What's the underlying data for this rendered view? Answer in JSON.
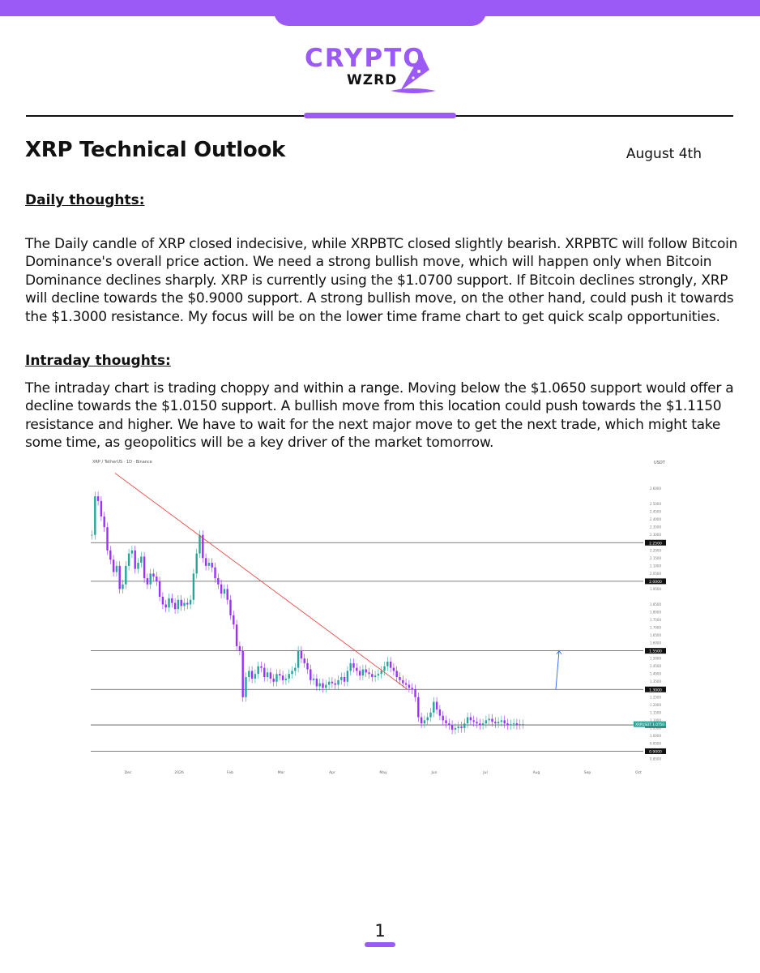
{
  "brand": {
    "name_top": "CRYPTO",
    "name_bottom": "WZRD",
    "accent": "#9b59f5"
  },
  "header": {
    "title": "XRP Technical Outlook",
    "date": "August 4th"
  },
  "daily": {
    "heading": "Daily thoughts:",
    "text": "The Daily candle of XRP closed indecisive, while XRPBTC closed slightly bearish. XRPBTC will follow Bitcoin Dominance's overall price action. We need a strong bullish move, which will happen only when Bitcoin Dominance declines sharply. XRP is currently using the $1.0700 support. If Bitcoin declines strongly, XRP will decline towards the $0.9000 support. A strong bullish move, on the other hand, could push it towards the $1.3000 resistance. My focus will be on the lower time frame chart to get quick scalp opportunities."
  },
  "intraday": {
    "heading": "Intraday thoughts:",
    "text": "The intraday chart is trading choppy and within a range. Moving below the $1.0650 support would offer a decline towards the $1.0150 support. A bullish move from this location could push towards the $1.1150 resistance and higher. We have to wait for the next major move to get the next trade, which might take some time, as geopolitics will be a key driver of the market tomorrow."
  },
  "chart_data": {
    "type": "candlestick",
    "title": "XRP / TetherUS · 1D · Binance",
    "ylabel": "USDT",
    "ylim": [
      0.85,
      2.75
    ],
    "x_ticks": [
      "Dec",
      "2026",
      "Feb",
      "Mar",
      "Apr",
      "May",
      "Jun",
      "Jul",
      "Aug",
      "Sep",
      "Oct"
    ],
    "y_ticks": [
      2.6,
      2.5,
      2.45,
      2.4,
      2.35,
      2.3,
      2.2,
      2.15,
      2.1,
      2.05,
      1.95,
      1.85,
      1.8,
      1.75,
      1.7,
      1.65,
      1.6,
      1.55,
      1.5,
      1.45,
      1.4,
      1.35,
      1.3,
      1.25,
      1.2,
      1.15,
      1.1,
      1.05,
      1.0,
      0.95,
      0.9,
      0.85
    ],
    "levels": [
      2.25,
      2.0,
      1.55,
      1.3,
      1.07,
      0.9
    ],
    "level_labels": [
      "2.2500",
      "2.0000",
      "1.5500",
      "1.3000",
      "1.0700",
      "0.9000"
    ],
    "current_price": 1.075,
    "current_label": "XRPUSDT",
    "closes": [
      2.3,
      2.55,
      2.52,
      2.42,
      2.35,
      2.2,
      2.14,
      2.06,
      2.1,
      1.95,
      1.98,
      2.1,
      2.18,
      2.2,
      2.08,
      2.12,
      2.16,
      2.02,
      1.98,
      2.05,
      2.03,
      2.0,
      1.9,
      1.85,
      1.83,
      1.89,
      1.86,
      1.82,
      1.88,
      1.84,
      1.86,
      1.85,
      1.88,
      2.05,
      2.18,
      2.3,
      2.15,
      2.1,
      2.12,
      2.09,
      2.02,
      1.98,
      1.92,
      1.95,
      1.88,
      1.78,
      1.72,
      1.58,
      1.55,
      1.25,
      1.38,
      1.42,
      1.37,
      1.4,
      1.45,
      1.44,
      1.38,
      1.41,
      1.37,
      1.35,
      1.4,
      1.39,
      1.36,
      1.37,
      1.4,
      1.42,
      1.44,
      1.55,
      1.5,
      1.47,
      1.43,
      1.36,
      1.37,
      1.32,
      1.34,
      1.31,
      1.33,
      1.35,
      1.34,
      1.33,
      1.36,
      1.38,
      1.35,
      1.42,
      1.47,
      1.44,
      1.42,
      1.39,
      1.43,
      1.41,
      1.4,
      1.38,
      1.39,
      1.4,
      1.42,
      1.45,
      1.48,
      1.44,
      1.42,
      1.38,
      1.36,
      1.34,
      1.33,
      1.31,
      1.3,
      1.25,
      1.12,
      1.08,
      1.1,
      1.12,
      1.15,
      1.22,
      1.17,
      1.13,
      1.1,
      1.08,
      1.07,
      1.04,
      1.05,
      1.06,
      1.05,
      1.08,
      1.12,
      1.1,
      1.09,
      1.08,
      1.07,
      1.08,
      1.1,
      1.11,
      1.09,
      1.08,
      1.09,
      1.1,
      1.08,
      1.07,
      1.075,
      1.08,
      1.07,
      1.075,
      1.075
    ],
    "trendline": [
      [
        0,
        2.7
      ],
      [
        95,
        1.3
      ]
    ],
    "arrow": {
      "from": 1.3,
      "to": 1.55
    }
  }
}
